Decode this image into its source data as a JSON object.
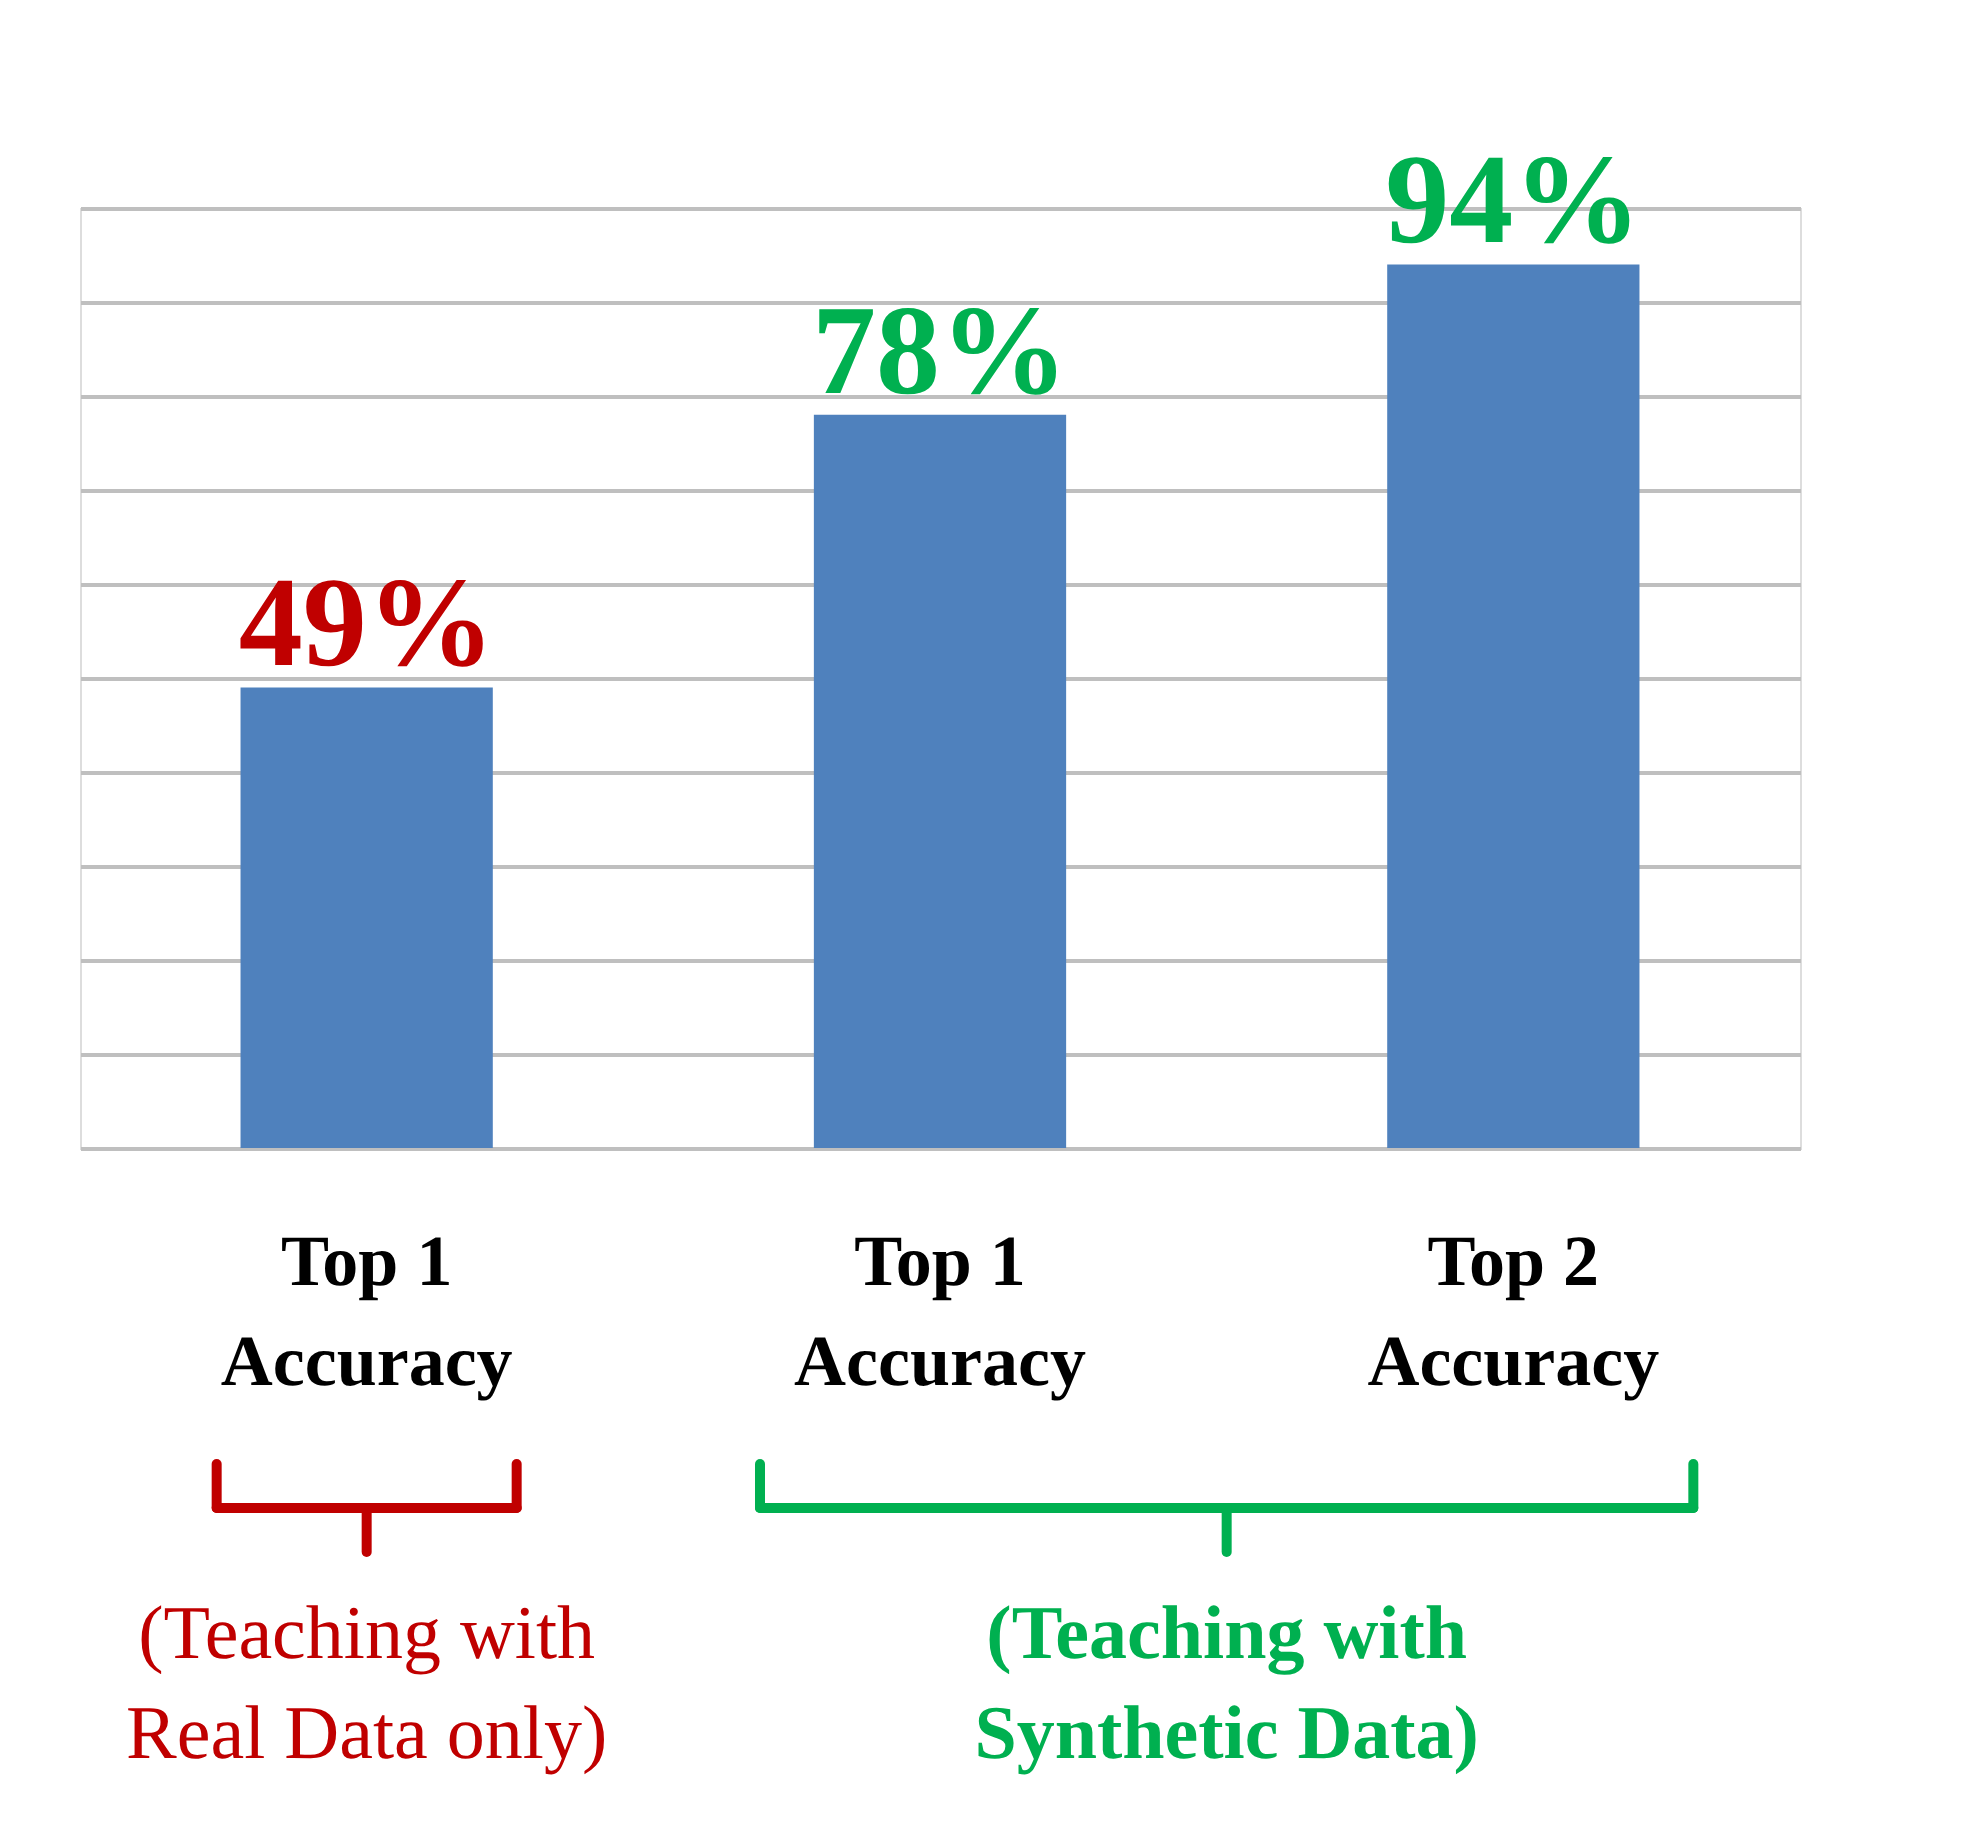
{
  "chart_data": {
    "type": "bar",
    "categories": [
      "Top 1 Accuracy",
      "Top 1 Accuracy",
      "Top 2 Accuracy"
    ],
    "values": [
      49,
      78,
      94
    ],
    "colors": [
      "#4f81bd",
      "#4f81bd",
      "#4f81bd"
    ],
    "value_labels": [
      "49%",
      "78%",
      "94%"
    ],
    "grid": "y",
    "tick_labels": "x",
    "annotations": [
      "(Teaching with Real Data only)",
      "(Teaching with Synthetic Data)"
    ]
  }
}
